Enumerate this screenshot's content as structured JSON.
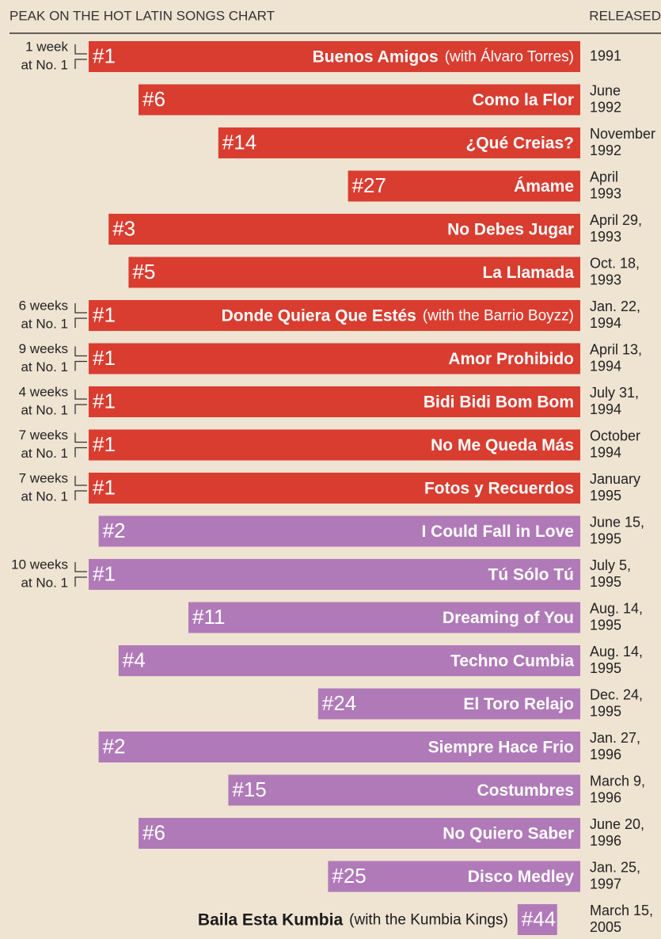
{
  "chart_data": {
    "type": "bar",
    "axis_label": "PEAK ON THE HOT LATIN SONGS CHART",
    "release_label": "RELEASED",
    "categories": [
      "Buenos Amigos",
      "Como la Flor",
      "¿Qué Creias?",
      "Ámame",
      "No Debes Jugar",
      "La Llamada",
      "Donde Quiera Que Estés",
      "Amor Prohibido",
      "Bidi Bidi Bom Bom",
      "No Me Queda Más",
      "Fotos y Recuerdos",
      "I Could Fall in Love",
      "Tú Sólo Tú",
      "Dreaming of You",
      "Techno Cumbia",
      "El Toro Relajo",
      "Siempre Hace Frio",
      "Costumbres",
      "No Quiero Saber",
      "Disco Medley",
      "Baila Esta Kumbia"
    ],
    "featuring": [
      "(with Álvaro Torres)",
      null,
      null,
      null,
      null,
      null,
      "(with the Barrio Boyzz)",
      null,
      null,
      null,
      null,
      null,
      null,
      null,
      null,
      null,
      null,
      null,
      null,
      null,
      "(with the Kumbia Kings)"
    ],
    "values": [
      1,
      6,
      14,
      27,
      3,
      5,
      1,
      1,
      1,
      1,
      1,
      2,
      1,
      11,
      4,
      24,
      2,
      15,
      6,
      25,
      44
    ],
    "value_labels": [
      "#1",
      "#6",
      "#14",
      "#27",
      "#3",
      "#5",
      "#1",
      "#1",
      "#1",
      "#1",
      "#1",
      "#2",
      "#1",
      "#11",
      "#4",
      "#24",
      "#2",
      "#15",
      "#6",
      "#25",
      "#44"
    ],
    "colors": [
      "#d93d30",
      "#d93d30",
      "#d93d30",
      "#d93d30",
      "#d93d30",
      "#d93d30",
      "#d93d30",
      "#d93d30",
      "#d93d30",
      "#d93d30",
      "#d93d30",
      "#b07ab8",
      "#b07ab8",
      "#b07ab8",
      "#b07ab8",
      "#b07ab8",
      "#b07ab8",
      "#b07ab8",
      "#b07ab8",
      "#b07ab8",
      "#b07ab8"
    ],
    "weeks_at_no1": [
      [
        "1 week",
        "at No. 1"
      ],
      null,
      null,
      null,
      null,
      null,
      [
        "6 weeks",
        "at No. 1"
      ],
      [
        "9 weeks",
        "at No. 1"
      ],
      [
        "4 weeks",
        "at No. 1"
      ],
      [
        "7 weeks",
        "at No. 1"
      ],
      [
        "7 weeks",
        "at No. 1"
      ],
      null,
      [
        "10 weeks",
        "at No. 1"
      ],
      null,
      null,
      null,
      null,
      null,
      null,
      null,
      null
    ],
    "released": [
      [
        "1991"
      ],
      [
        "June",
        "1992"
      ],
      [
        "November",
        "1992"
      ],
      [
        "April",
        "1993"
      ],
      [
        "April 29,",
        "1993"
      ],
      [
        "Oct. 18,",
        "1993"
      ],
      [
        "Jan. 22,",
        "1994"
      ],
      [
        "April 13,",
        "1994"
      ],
      [
        "July 31,",
        "1994"
      ],
      [
        "October",
        "1994"
      ],
      [
        "January",
        "1995"
      ],
      [
        "June 15,",
        "1995"
      ],
      [
        "July 5,",
        "1995"
      ],
      [
        "Aug. 14,",
        "1995"
      ],
      [
        "Aug. 14,",
        "1995"
      ],
      [
        "Dec. 24,",
        "1995"
      ],
      [
        "Jan. 27,",
        "1996"
      ],
      [
        "March 9,",
        "1996"
      ],
      [
        "June 20,",
        "1996"
      ],
      [
        "Jan. 25,",
        "1997"
      ],
      [
        "March 15,",
        "2005"
      ]
    ],
    "xlim": [
      0,
      50
    ]
  }
}
